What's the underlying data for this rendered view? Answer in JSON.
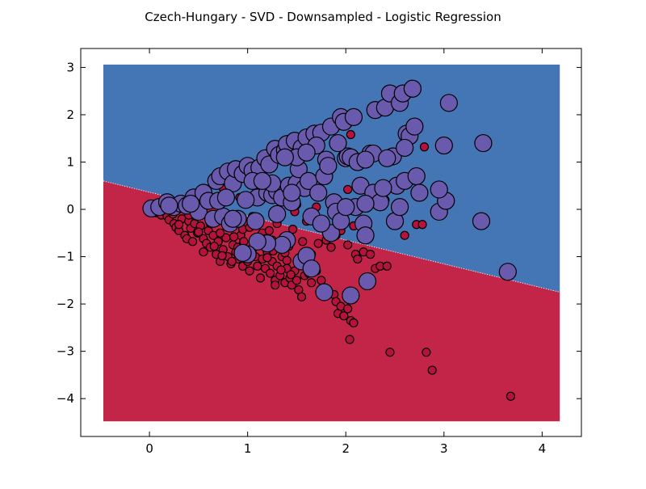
{
  "chart_data": {
    "type": "scatter",
    "title": "Czech-Hungary - SVD - Downsampled - Logistic Regression",
    "xlabel": "",
    "ylabel": "",
    "xlim": [
      -0.7,
      4.4
    ],
    "ylim": [
      -4.8,
      3.4
    ],
    "x_ticks": [
      0,
      1,
      2,
      3,
      4
    ],
    "y_ticks": [
      3,
      2,
      1,
      0,
      -1,
      -2,
      -3,
      -4
    ],
    "x_tick_labels": [
      "0",
      "1",
      "2",
      "3",
      "4"
    ],
    "y_tick_labels": [
      "3",
      "2",
      "1",
      "0",
      "−1",
      "−2",
      "−3",
      "−4"
    ],
    "grid": false,
    "legend": "none",
    "decision_region": {
      "x_range": [
        -0.47,
        4.18
      ],
      "y_range": [
        -4.48,
        3.06
      ],
      "boundary_line": [
        [
          -0.47,
          0.6
        ],
        [
          4.18,
          -1.75
        ]
      ],
      "upper_color": "#4475b4",
      "lower_color": "#c32549"
    },
    "colors": {
      "class_small": "#b5123c",
      "class_large": "#6a5aad",
      "edge": "#000000"
    },
    "series": [
      {
        "points": [
          [
            0.07,
            -0.07
          ],
          [
            0.12,
            -0.12
          ],
          [
            0.15,
            -0.05
          ],
          [
            0.18,
            -0.15
          ],
          [
            0.2,
            -0.22
          ],
          [
            0.24,
            -0.1
          ],
          [
            0.25,
            -0.3
          ],
          [
            0.27,
            -0.38
          ],
          [
            0.3,
            -0.45
          ],
          [
            0.33,
            -0.2
          ],
          [
            0.36,
            -0.55
          ],
          [
            0.38,
            -0.62
          ],
          [
            0.4,
            -0.25
          ],
          [
            0.42,
            -0.4
          ],
          [
            0.44,
            -0.68
          ],
          [
            0.46,
            -0.3
          ],
          [
            0.49,
            -0.5
          ],
          [
            0.52,
            -0.35
          ],
          [
            0.55,
            -0.62
          ],
          [
            0.58,
            -0.72
          ],
          [
            0.6,
            -0.45
          ],
          [
            0.62,
            -0.8
          ],
          [
            0.65,
            -0.55
          ],
          [
            0.68,
            -0.95
          ],
          [
            0.7,
            -0.68
          ],
          [
            0.72,
            -1.1
          ],
          [
            0.75,
            -0.85
          ],
          [
            0.78,
            -0.6
          ],
          [
            0.8,
            -1.0
          ],
          [
            0.83,
            -1.15
          ],
          [
            0.85,
            -0.75
          ],
          [
            0.88,
            -0.9
          ],
          [
            0.9,
            -1.05
          ],
          [
            0.93,
            -0.55
          ],
          [
            0.95,
            -1.2
          ],
          [
            0.98,
            -0.95
          ],
          [
            1.0,
            -1.1
          ],
          [
            1.02,
            -1.3
          ],
          [
            1.05,
            -0.85
          ],
          [
            1.08,
            -1.0
          ],
          [
            1.1,
            -1.2
          ],
          [
            1.13,
            -1.45
          ],
          [
            1.15,
            -1.05
          ],
          [
            1.18,
            -1.25
          ],
          [
            1.2,
            -0.9
          ],
          [
            1.23,
            -1.35
          ],
          [
            1.25,
            -1.1
          ],
          [
            1.28,
            -1.5
          ],
          [
            1.3,
            -1.2
          ],
          [
            1.33,
            -1.4
          ],
          [
            1.35,
            -1.0
          ],
          [
            1.38,
            -1.55
          ],
          [
            1.4,
            -1.25
          ],
          [
            1.43,
            -1.45
          ],
          [
            1.45,
            -1.6
          ],
          [
            1.48,
            -1.3
          ],
          [
            1.5,
            -1.5
          ],
          [
            1.52,
            -1.7
          ],
          [
            1.55,
            -1.85
          ],
          [
            1.58,
            -1.4
          ],
          [
            1.6,
            -1.2
          ],
          [
            1.65,
            -1.55
          ],
          [
            1.7,
            -1.3
          ],
          [
            1.75,
            -1.5
          ],
          [
            1.8,
            -0.65
          ],
          [
            1.85,
            -0.8
          ],
          [
            1.88,
            -1.8
          ],
          [
            1.9,
            -1.95
          ],
          [
            1.92,
            -2.2
          ],
          [
            1.95,
            -2.05
          ],
          [
            1.98,
            -2.25
          ],
          [
            2.02,
            -2.1
          ],
          [
            2.05,
            -2.35
          ],
          [
            2.08,
            -2.4
          ],
          [
            2.04,
            -2.75
          ],
          [
            2.02,
            -0.75
          ],
          [
            2.1,
            -0.95
          ],
          [
            2.12,
            -1.05
          ],
          [
            2.18,
            -0.9
          ],
          [
            2.25,
            -0.95
          ],
          [
            2.3,
            -1.25
          ],
          [
            2.35,
            -1.2
          ],
          [
            2.42,
            -1.2
          ],
          [
            2.45,
            -3.02
          ],
          [
            2.6,
            -0.55
          ],
          [
            2.72,
            -0.32
          ],
          [
            2.78,
            -0.32
          ],
          [
            2.8,
            1.32
          ],
          [
            2.82,
            -3.02
          ],
          [
            2.88,
            -3.4
          ],
          [
            3.68,
            -3.95
          ],
          [
            2.05,
            1.58
          ],
          [
            2.02,
            0.42
          ],
          [
            1.0,
            0.75
          ],
          [
            0.75,
            0.45
          ],
          [
            0.85,
            0.65
          ],
          [
            1.5,
            0.1
          ],
          [
            1.7,
            0.05
          ],
          [
            2.4,
            0.2
          ],
          [
            0.92,
            0.25
          ],
          [
            1.35,
            0.18
          ],
          [
            1.12,
            0.45
          ],
          [
            1.6,
            -0.25
          ],
          [
            1.78,
            -0.35
          ],
          [
            0.68,
            -0.25
          ],
          [
            0.48,
            -0.15
          ],
          [
            1.95,
            -0.45
          ],
          [
            1.25,
            -0.65
          ],
          [
            1.42,
            -0.78
          ],
          [
            0.95,
            -0.42
          ],
          [
            1.15,
            -0.5
          ],
          [
            0.55,
            -0.9
          ],
          [
            0.8,
            -0.35
          ],
          [
            1.65,
            -0.95
          ],
          [
            1.48,
            -0.05
          ],
          [
            1.3,
            -0.3
          ],
          [
            1.05,
            -0.15
          ],
          [
            0.6,
            0.1
          ],
          [
            0.78,
            0.18
          ],
          [
            1.22,
            -0.45
          ],
          [
            1.38,
            -0.92
          ],
          [
            1.52,
            -1.12
          ],
          [
            1.72,
            -0.72
          ],
          [
            1.08,
            -0.72
          ],
          [
            0.9,
            -0.8
          ],
          [
            0.72,
            -0.5
          ],
          [
            1.32,
            -0.78
          ],
          [
            1.46,
            -0.42
          ],
          [
            1.18,
            -0.62
          ],
          [
            1.02,
            -0.38
          ],
          [
            0.62,
            -0.3
          ],
          [
            0.86,
            -0.58
          ],
          [
            1.56,
            -0.68
          ],
          [
            1.9,
            -0.55
          ],
          [
            2.08,
            -0.35
          ],
          [
            2.22,
            -0.6
          ],
          [
            0.4,
            -0.12
          ],
          [
            0.3,
            -0.32
          ],
          [
            0.5,
            -0.48
          ],
          [
            0.66,
            -0.78
          ],
          [
            0.96,
            -0.68
          ],
          [
            1.26,
            -0.88
          ],
          [
            1.4,
            -1.08
          ],
          [
            1.62,
            -1.35
          ],
          [
            1.2,
            -1.02
          ],
          [
            0.74,
            -0.98
          ],
          [
            0.84,
            -1.1
          ],
          [
            1.44,
            -1.38
          ],
          [
            1.34,
            -1.28
          ],
          [
            1.28,
            -1.6
          ]
        ]
      },
      {
        "points": [
          [
            0.02,
            0.02
          ],
          [
            0.1,
            0.05
          ],
          [
            0.18,
            0.15
          ],
          [
            0.25,
            0.05
          ],
          [
            0.32,
            0.12
          ],
          [
            0.38,
            0.08
          ],
          [
            0.45,
            0.25
          ],
          [
            0.5,
            -0.05
          ],
          [
            0.55,
            0.35
          ],
          [
            0.6,
            0.18
          ],
          [
            0.65,
            -0.2
          ],
          [
            0.68,
            0.6
          ],
          [
            0.72,
            0.7
          ],
          [
            0.75,
            -0.15
          ],
          [
            0.8,
            0.8
          ],
          [
            0.82,
            -0.3
          ],
          [
            0.85,
            0.55
          ],
          [
            0.88,
            0.85
          ],
          [
            0.9,
            -0.2
          ],
          [
            0.95,
            0.75
          ],
          [
            1.0,
            0.92
          ],
          [
            1.05,
            0.82
          ],
          [
            1.08,
            -0.25
          ],
          [
            1.1,
            0.25
          ],
          [
            1.12,
            0.88
          ],
          [
            1.18,
            1.08
          ],
          [
            1.2,
            0.35
          ],
          [
            1.22,
            0.95
          ],
          [
            1.25,
            0.3
          ],
          [
            1.28,
            1.28
          ],
          [
            1.3,
            0.38
          ],
          [
            1.32,
            1.15
          ],
          [
            1.35,
            0.25
          ],
          [
            1.38,
            1.25
          ],
          [
            1.4,
            1.38
          ],
          [
            1.42,
            0.5
          ],
          [
            1.45,
            0.15
          ],
          [
            1.48,
            1.45
          ],
          [
            1.5,
            0.55
          ],
          [
            1.52,
            0.85
          ],
          [
            1.55,
            1.3
          ],
          [
            1.58,
            0.45
          ],
          [
            1.6,
            1.52
          ],
          [
            1.62,
            0.6
          ],
          [
            1.65,
            -0.15
          ],
          [
            1.68,
            1.6
          ],
          [
            1.72,
            0.35
          ],
          [
            1.75,
            1.62
          ],
          [
            1.78,
            0.7
          ],
          [
            1.8,
            1.05
          ],
          [
            1.82,
            0.92
          ],
          [
            1.85,
            1.75
          ],
          [
            1.88,
            0.15
          ],
          [
            1.9,
            -0.05
          ],
          [
            1.95,
            1.95
          ],
          [
            1.98,
            1.85
          ],
          [
            2.0,
            1.08
          ],
          [
            2.02,
            1.12
          ],
          [
            2.05,
            1.1
          ],
          [
            2.08,
            1.95
          ],
          [
            2.1,
            0.05
          ],
          [
            2.12,
            1.0
          ],
          [
            2.15,
            0.5
          ],
          [
            2.18,
            -0.3
          ],
          [
            2.2,
            -0.55
          ],
          [
            2.22,
            -1.52
          ],
          [
            2.25,
            1.18
          ],
          [
            2.28,
            0.35
          ],
          [
            2.3,
            2.1
          ],
          [
            2.35,
            0.15
          ],
          [
            2.4,
            2.15
          ],
          [
            2.45,
            2.45
          ],
          [
            2.48,
            1.12
          ],
          [
            2.5,
            -0.25
          ],
          [
            2.52,
            0.5
          ],
          [
            2.55,
            2.25
          ],
          [
            2.58,
            2.45
          ],
          [
            2.6,
            0.6
          ],
          [
            2.62,
            1.6
          ],
          [
            2.65,
            1.55
          ],
          [
            2.68,
            2.55
          ],
          [
            2.7,
            1.75
          ],
          [
            2.72,
            0.7
          ],
          [
            2.75,
            0.35
          ],
          [
            2.95,
            -0.05
          ],
          [
            3.0,
            1.35
          ],
          [
            3.02,
            0.18
          ],
          [
            3.05,
            2.25
          ],
          [
            3.38,
            -0.25
          ],
          [
            3.4,
            1.4
          ],
          [
            3.65,
            -1.32
          ],
          [
            2.05,
            -1.82
          ],
          [
            1.78,
            -1.75
          ],
          [
            1.85,
            -0.5
          ],
          [
            1.55,
            -1.1
          ],
          [
            1.6,
            -0.98
          ],
          [
            1.65,
            -1.25
          ],
          [
            1.4,
            -0.65
          ],
          [
            1.35,
            -0.75
          ],
          [
            1.2,
            -0.72
          ],
          [
            1.1,
            -0.68
          ],
          [
            1.0,
            -0.95
          ],
          [
            0.95,
            -0.92
          ],
          [
            0.85,
            -0.2
          ],
          [
            0.7,
            0.18
          ],
          [
            1.05,
            0.6
          ],
          [
            1.25,
            0.55
          ],
          [
            1.45,
            0.35
          ],
          [
            1.3,
            -0.1
          ],
          [
            1.75,
            -0.3
          ],
          [
            1.95,
            -0.25
          ],
          [
            2.0,
            0.05
          ],
          [
            2.2,
            0.12
          ],
          [
            2.38,
            0.45
          ],
          [
            2.55,
            0.05
          ],
          [
            2.95,
            0.42
          ],
          [
            2.6,
            1.3
          ],
          [
            1.92,
            1.4
          ],
          [
            2.28,
            1.18
          ],
          [
            1.15,
            0.6
          ],
          [
            0.98,
            0.2
          ],
          [
            0.78,
            0.25
          ],
          [
            0.42,
            0.12
          ],
          [
            0.2,
            0.08
          ],
          [
            1.5,
            1.1
          ],
          [
            1.7,
            1.35
          ],
          [
            2.2,
            1.05
          ],
          [
            2.42,
            1.08
          ],
          [
            1.6,
            1.2
          ],
          [
            1.38,
            1.1
          ]
        ]
      }
    ]
  }
}
